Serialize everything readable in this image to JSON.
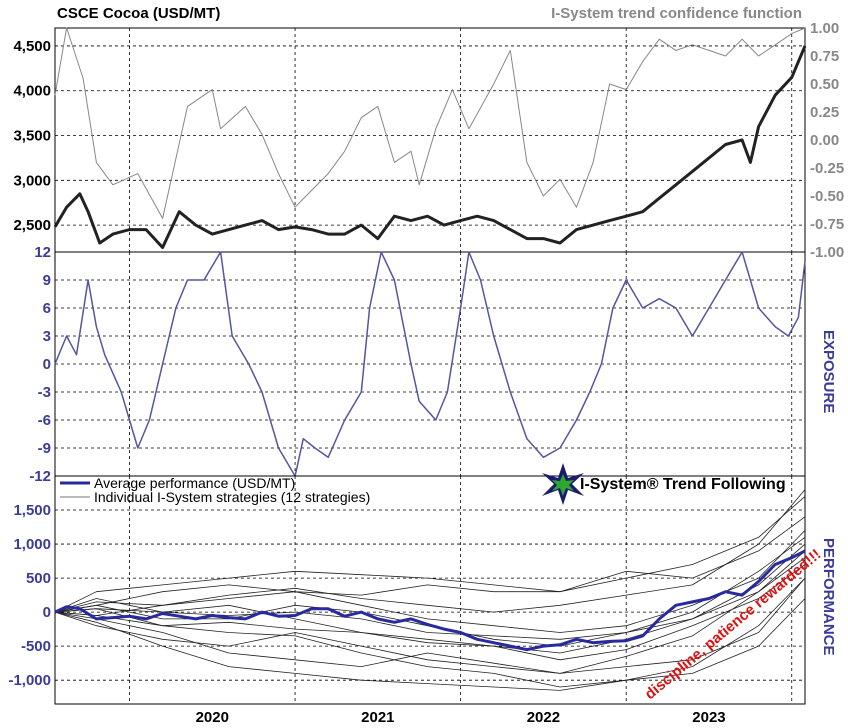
{
  "chart_data": [
    {
      "type": "line",
      "title": "CSCE Cocoa (USD/MT)",
      "right_title": "I-System trend confidence function",
      "y_left_ticks": [
        4500,
        4000,
        3500,
        3000,
        2500
      ],
      "y_left_tick_labels": [
        "4,500",
        "4,000",
        "3,500",
        "3,000",
        "2,500"
      ],
      "y_left_range": [
        2200,
        4700
      ],
      "y_right_ticks": [
        1.0,
        0.75,
        0.5,
        0.25,
        0.0,
        -0.25,
        -0.5,
        -0.75,
        -1.0
      ],
      "y_right_tick_labels": [
        "1.00",
        "0.75",
        "0.50",
        "0.25",
        "0.00",
        "-0.25",
        "-0.50",
        "-0.75",
        "-1.00"
      ],
      "y_right_range": [
        -1.0,
        1.0
      ],
      "x_range": [
        2019.55,
        2024.08
      ],
      "series": [
        {
          "color": "#222222",
          "x": [
            2019.55,
            2019.62,
            2019.7,
            2019.75,
            2019.82,
            2019.9,
            2020.0,
            2020.1,
            2020.2,
            2020.3,
            2020.4,
            2020.5,
            2020.6,
            2020.7,
            2020.8,
            2020.9,
            2021.0,
            2021.1,
            2021.2,
            2021.3,
            2021.4,
            2021.5,
            2021.6,
            2021.7,
            2021.8,
            2021.9,
            2022.0,
            2022.1,
            2022.2,
            2022.3,
            2022.4,
            2022.5,
            2022.6,
            2022.7,
            2022.8,
            2022.9,
            2023.0,
            2023.1,
            2023.2,
            2023.3,
            2023.4,
            2023.5,
            2023.6,
            2023.7,
            2023.75,
            2023.8,
            2023.9,
            2024.0,
            2024.08
          ],
          "y": [
            2480,
            2700,
            2850,
            2650,
            2300,
            2400,
            2450,
            2450,
            2250,
            2650,
            2500,
            2400,
            2450,
            2500,
            2550,
            2450,
            2480,
            2450,
            2400,
            2400,
            2500,
            2350,
            2600,
            2550,
            2600,
            2500,
            2550,
            2600,
            2550,
            2450,
            2350,
            2350,
            2300,
            2450,
            2500,
            2550,
            2600,
            2650,
            2800,
            2950,
            3100,
            3250,
            3400,
            3450,
            3200,
            3600,
            3950,
            4150,
            4500
          ]
        },
        {
          "color": "#888888",
          "x": [
            2019.55,
            2019.62,
            2019.72,
            2019.8,
            2019.9,
            2020.05,
            2020.2,
            2020.35,
            2020.5,
            2020.55,
            2020.7,
            2020.8,
            2020.9,
            2021.0,
            2021.1,
            2021.2,
            2021.3,
            2021.4,
            2021.5,
            2021.6,
            2021.7,
            2021.75,
            2021.85,
            2021.95,
            2022.05,
            2022.2,
            2022.3,
            2022.4,
            2022.5,
            2022.6,
            2022.7,
            2022.8,
            2022.9,
            2023.0,
            2023.1,
            2023.2,
            2023.3,
            2023.4,
            2023.5,
            2023.6,
            2023.7,
            2023.8,
            2023.9,
            2024.0,
            2024.08
          ],
          "y": [
            0.4,
            1.0,
            0.55,
            -0.2,
            -0.4,
            -0.3,
            -0.7,
            0.3,
            0.45,
            0.1,
            0.3,
            0.05,
            -0.3,
            -0.6,
            -0.45,
            -0.3,
            -0.1,
            0.2,
            0.3,
            -0.2,
            -0.1,
            -0.4,
            0.1,
            0.45,
            0.1,
            0.5,
            0.8,
            -0.2,
            -0.5,
            -0.35,
            -0.6,
            -0.2,
            0.5,
            0.45,
            0.7,
            0.9,
            0.8,
            0.85,
            0.8,
            0.75,
            0.9,
            0.75,
            0.85,
            0.95,
            1.0
          ]
        }
      ]
    },
    {
      "type": "line",
      "ylabel": "EXPOSURE",
      "y_ticks": [
        12,
        9,
        6,
        3,
        0,
        -3,
        -6,
        -9,
        -12
      ],
      "y_range": [
        -12,
        12
      ],
      "x_range": [
        2019.55,
        2024.08
      ],
      "series": [
        {
          "color": "#5555a0",
          "x": [
            2019.55,
            2019.62,
            2019.68,
            2019.75,
            2019.8,
            2019.85,
            2019.95,
            2020.05,
            2020.12,
            2020.2,
            2020.28,
            2020.35,
            2020.45,
            2020.55,
            2020.62,
            2020.72,
            2020.8,
            2020.9,
            2021.0,
            2021.05,
            2021.12,
            2021.2,
            2021.3,
            2021.4,
            2021.45,
            2021.52,
            2021.6,
            2021.7,
            2021.75,
            2021.85,
            2021.92,
            2022.0,
            2022.05,
            2022.12,
            2022.2,
            2022.3,
            2022.4,
            2022.5,
            2022.6,
            2022.7,
            2022.78,
            2022.85,
            2022.92,
            2023.0,
            2023.1,
            2023.2,
            2023.3,
            2023.4,
            2023.5,
            2023.6,
            2023.7,
            2023.8,
            2023.9,
            2023.98,
            2024.04,
            2024.08
          ],
          "y": [
            0,
            3,
            1,
            9,
            4,
            1,
            -3,
            -9,
            -6,
            0,
            6,
            9,
            9,
            12,
            3,
            0,
            -3,
            -9,
            -12,
            -8,
            -9,
            -10,
            -6,
            -3,
            6,
            12,
            9,
            0,
            -4,
            -6,
            -3,
            6,
            12,
            9,
            3,
            -3,
            -8,
            -10,
            -9,
            -6,
            -3,
            0,
            6,
            9,
            6,
            7,
            6,
            3,
            6,
            9,
            12,
            6,
            4,
            3,
            5,
            11
          ]
        }
      ]
    },
    {
      "type": "line",
      "ylabel": "PERFORMANCE",
      "y_ticks": [
        1500,
        1000,
        500,
        0,
        -500,
        -1000
      ],
      "y_tick_labels": [
        "1,500",
        "1,000",
        "500",
        "0",
        "-500",
        "-1,000"
      ],
      "y_range": [
        -1350,
        2000
      ],
      "x_range": [
        2019.55,
        2024.08
      ],
      "x_tick_labels": [
        "2020",
        "2021",
        "2022",
        "2023"
      ],
      "x_tick_positions": [
        2020.5,
        2021.5,
        2022.5,
        2023.5
      ],
      "legend": [
        "Average performance (USD/MT)",
        "Individual I-System strategies (12 strategies)"
      ],
      "legend_position": "top-left",
      "logo_text": "I-System® Trend Following",
      "annotation": "discipline, patience rewarded!!!",
      "series": [
        {
          "name": "Average performance (USD/MT)",
          "color": "#2a2aa0",
          "x": [
            2019.55,
            2019.62,
            2019.7,
            2019.8,
            2019.9,
            2020.0,
            2020.1,
            2020.2,
            2020.3,
            2020.4,
            2020.5,
            2020.6,
            2020.7,
            2020.8,
            2020.9,
            2021.0,
            2021.1,
            2021.2,
            2021.3,
            2021.4,
            2021.5,
            2021.6,
            2021.7,
            2021.8,
            2021.9,
            2022.0,
            2022.1,
            2022.2,
            2022.3,
            2022.4,
            2022.5,
            2022.6,
            2022.7,
            2022.8,
            2022.9,
            2023.0,
            2023.1,
            2023.2,
            2023.3,
            2023.4,
            2023.5,
            2023.6,
            2023.7,
            2023.8,
            2023.9,
            2024.0,
            2024.08
          ],
          "y": [
            0,
            80,
            50,
            -100,
            -80,
            -60,
            -100,
            -20,
            -60,
            -100,
            -50,
            -80,
            -100,
            0,
            -60,
            -50,
            50,
            50,
            -60,
            0,
            -100,
            -150,
            -100,
            -180,
            -250,
            -300,
            -400,
            -450,
            -500,
            -550,
            -500,
            -480,
            -400,
            -450,
            -430,
            -420,
            -350,
            -100,
            100,
            150,
            200,
            300,
            250,
            450,
            700,
            800,
            900
          ]
        },
        {
          "color": "#222222",
          "x": [
            2019.55,
            2019.8,
            2020.2,
            2020.6,
            2021.0,
            2021.4,
            2021.8,
            2022.2,
            2022.6,
            2023.0,
            2023.4,
            2023.8,
            2024.08
          ],
          "y": [
            0,
            150,
            100,
            250,
            350,
            200,
            100,
            0,
            100,
            250,
            400,
            1000,
            1800
          ]
        },
        {
          "color": "#222222",
          "x": [
            2019.55,
            2019.8,
            2020.2,
            2020.6,
            2021.0,
            2021.4,
            2021.8,
            2022.2,
            2022.6,
            2023.0,
            2023.4,
            2023.8,
            2024.08
          ],
          "y": [
            0,
            50,
            -200,
            -300,
            -350,
            -600,
            -800,
            -900,
            -1100,
            -1000,
            -800,
            -200,
            500
          ]
        },
        {
          "color": "#222222",
          "x": [
            2019.55,
            2019.8,
            2020.2,
            2020.6,
            2021.0,
            2021.4,
            2021.8,
            2022.2,
            2022.6,
            2023.0,
            2023.4,
            2023.8,
            2024.08
          ],
          "y": [
            0,
            100,
            300,
            400,
            300,
            250,
            400,
            300,
            300,
            600,
            500,
            900,
            1400
          ]
        },
        {
          "color": "#222222",
          "x": [
            2019.55,
            2019.8,
            2020.2,
            2020.6,
            2021.0,
            2021.4,
            2021.8,
            2022.2,
            2022.6,
            2023.0,
            2023.4,
            2023.8,
            2024.08
          ],
          "y": [
            0,
            -100,
            -300,
            -600,
            -700,
            -800,
            -600,
            -750,
            -900,
            -650,
            -350,
            300,
            800
          ]
        },
        {
          "color": "#222222",
          "x": [
            2019.55,
            2019.8,
            2020.2,
            2020.6,
            2021.0,
            2021.4,
            2021.8,
            2022.2,
            2022.6,
            2023.0,
            2023.4,
            2023.8,
            2024.08
          ],
          "y": [
            0,
            200,
            0,
            100,
            -100,
            -300,
            -400,
            -500,
            -600,
            -400,
            -100,
            400,
            1000
          ]
        },
        {
          "color": "#222222",
          "x": [
            2019.55,
            2019.8,
            2020.2,
            2020.6,
            2021.0,
            2021.4,
            2021.8,
            2022.2,
            2022.6,
            2023.0,
            2023.4,
            2023.8,
            2024.08
          ],
          "y": [
            0,
            -50,
            100,
            200,
            300,
            100,
            -100,
            -200,
            -300,
            -200,
            100,
            500,
            1200
          ]
        },
        {
          "color": "#222222",
          "x": [
            2019.55,
            2019.8,
            2020.2,
            2020.6,
            2021.0,
            2021.4,
            2021.8,
            2022.2,
            2022.6,
            2023.0,
            2023.4,
            2023.8,
            2024.08
          ],
          "y": [
            0,
            -200,
            -400,
            -500,
            -300,
            -500,
            -700,
            -800,
            -900,
            -800,
            -700,
            -300,
            500
          ]
        },
        {
          "color": "#222222",
          "x": [
            2019.55,
            2019.8,
            2020.2,
            2020.6,
            2021.0,
            2021.4,
            2021.8,
            2022.2,
            2022.6,
            2023.0,
            2023.4,
            2023.8,
            2024.08
          ],
          "y": [
            0,
            100,
            -100,
            -100,
            100,
            0,
            -200,
            -400,
            -500,
            -300,
            0,
            600,
            1100
          ]
        },
        {
          "color": "#222222",
          "x": [
            2019.55,
            2019.8,
            2020.2,
            2020.6,
            2021.0,
            2021.4,
            2021.8,
            2022.2,
            2022.6,
            2023.0,
            2023.4,
            2023.8,
            2024.08
          ],
          "y": [
            0,
            -50,
            -200,
            -150,
            -250,
            -300,
            -450,
            -500,
            -700,
            -550,
            -200,
            200,
            700
          ]
        },
        {
          "color": "#222222",
          "x": [
            2019.55,
            2019.8,
            2020.2,
            2020.6,
            2021.0,
            2021.4,
            2021.8,
            2022.2,
            2022.6,
            2023.0,
            2023.4,
            2023.8,
            2024.08
          ],
          "y": [
            0,
            300,
            400,
            500,
            600,
            550,
            500,
            400,
            300,
            500,
            700,
            1100,
            1700
          ]
        },
        {
          "color": "#222222",
          "x": [
            2019.55,
            2019.8,
            2020.2,
            2020.6,
            2021.0,
            2021.4,
            2021.8,
            2022.2,
            2022.6,
            2023.0,
            2023.4,
            2023.8,
            2024.08
          ],
          "y": [
            0,
            -150,
            -500,
            -800,
            -900,
            -1000,
            -1050,
            -1100,
            -1150,
            -1000,
            -900,
            -500,
            200
          ]
        },
        {
          "color": "#222222",
          "x": [
            2019.55,
            2019.8,
            2020.2,
            2020.6,
            2021.0,
            2021.4,
            2021.8,
            2022.2,
            2022.6,
            2023.0,
            2023.4,
            2023.8,
            2024.08
          ],
          "y": [
            0,
            50,
            0,
            -50,
            0,
            -100,
            -300,
            -350,
            -400,
            -300,
            -100,
            300,
            900
          ]
        }
      ]
    }
  ]
}
